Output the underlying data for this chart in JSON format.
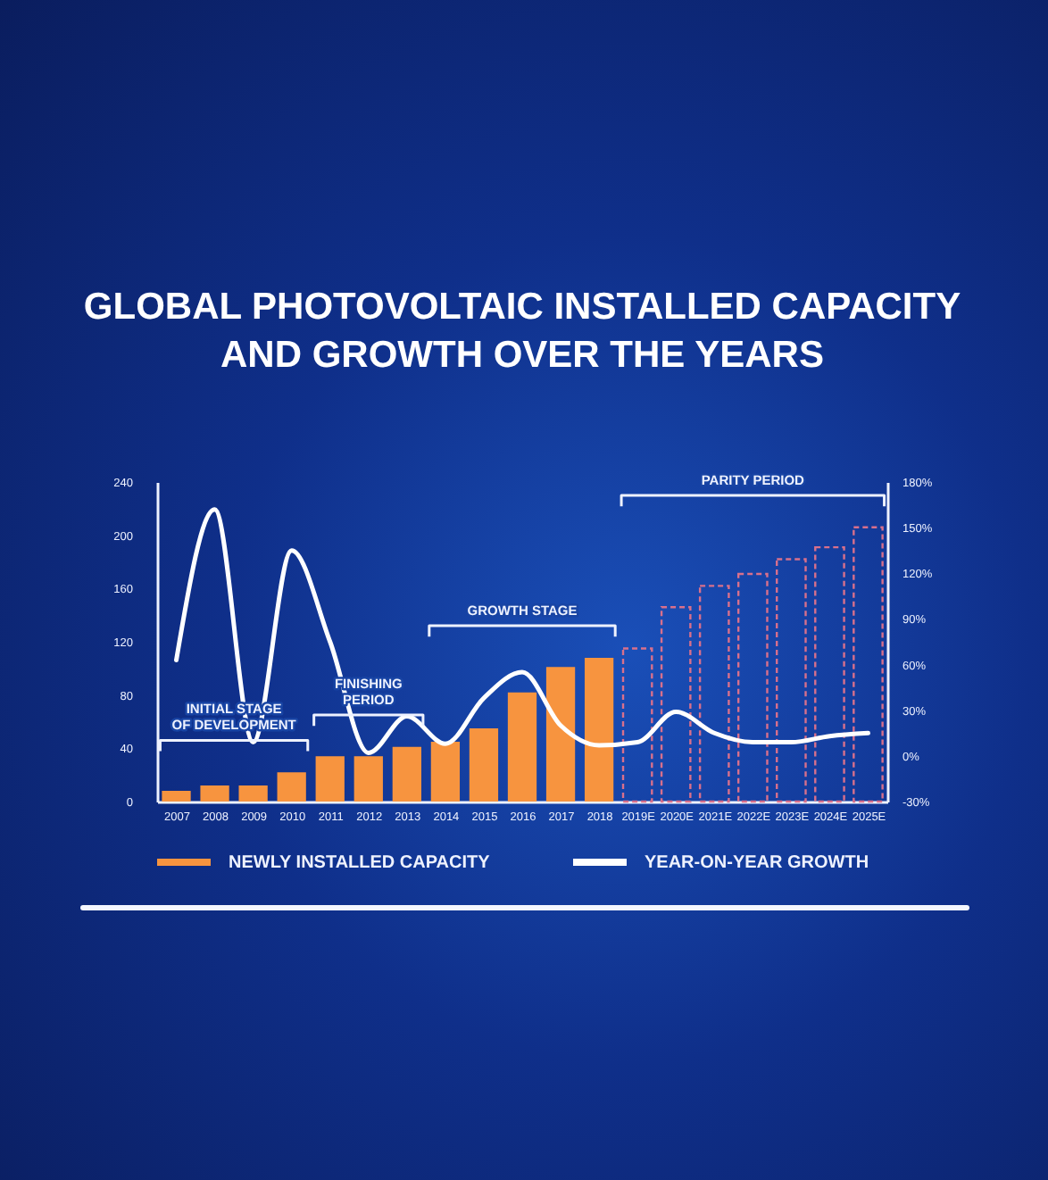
{
  "chart_data": {
    "type": "bar",
    "title": "GLOBAL PHOTOVOLTAIC INSTALLED CAPACITY\nAND GROWTH OVER THE YEARS",
    "categories": [
      "2007",
      "2008",
      "2009",
      "2010",
      "2011",
      "2012",
      "2013",
      "2014",
      "2015",
      "2016",
      "2017",
      "2018",
      "2019E",
      "2020E",
      "2021E",
      "2022E",
      "2023E",
      "2024E",
      "2025E"
    ],
    "series": [
      {
        "name": "NEWLY INSTALLED CAPACITY",
        "color": "#f7943f",
        "values": [
          8,
          12,
          12,
          22,
          34,
          34,
          41,
          45,
          55,
          82,
          101,
          108,
          null,
          null,
          null,
          null,
          null,
          null,
          null
        ]
      },
      {
        "color": "#d8708c",
        "line_style": "dashed",
        "values": [
          null,
          null,
          null,
          null,
          null,
          null,
          null,
          null,
          null,
          null,
          null,
          null,
          115,
          146,
          162,
          171,
          182,
          191,
          206
        ]
      },
      {
        "name": "YEAR-ON-YEAR GROWTH",
        "type": "line",
        "axis": "y2",
        "color": "#ffffff",
        "values": [
          63,
          162,
          9,
          135,
          75,
          2,
          26,
          8,
          38,
          55,
          20,
          7,
          9,
          29,
          15,
          9,
          9,
          13,
          15
        ]
      }
    ],
    "ylim": [
      0,
      240
    ],
    "yticks": [
      0,
      40,
      80,
      120,
      160,
      200,
      240
    ],
    "y2lim": [
      -30,
      180
    ],
    "y2ticks": [
      {
        "value": -30,
        "label": "-30%"
      },
      {
        "value": 0,
        "label": "0%"
      },
      {
        "value": 30,
        "label": "30%"
      },
      {
        "value": 60,
        "label": "60%"
      },
      {
        "value": 90,
        "label": "90%"
      },
      {
        "value": 120,
        "label": "120%"
      },
      {
        "value": 150,
        "label": "150%"
      },
      {
        "value": 180,
        "label": "180%"
      }
    ],
    "annotations": [
      "INITIAL STAGE\nOF DEVELOPMENT",
      "FINISHING\nPERIOD",
      "GROWTH STAGE",
      "PARITY PERIOD"
    ],
    "legend": "bottom"
  }
}
